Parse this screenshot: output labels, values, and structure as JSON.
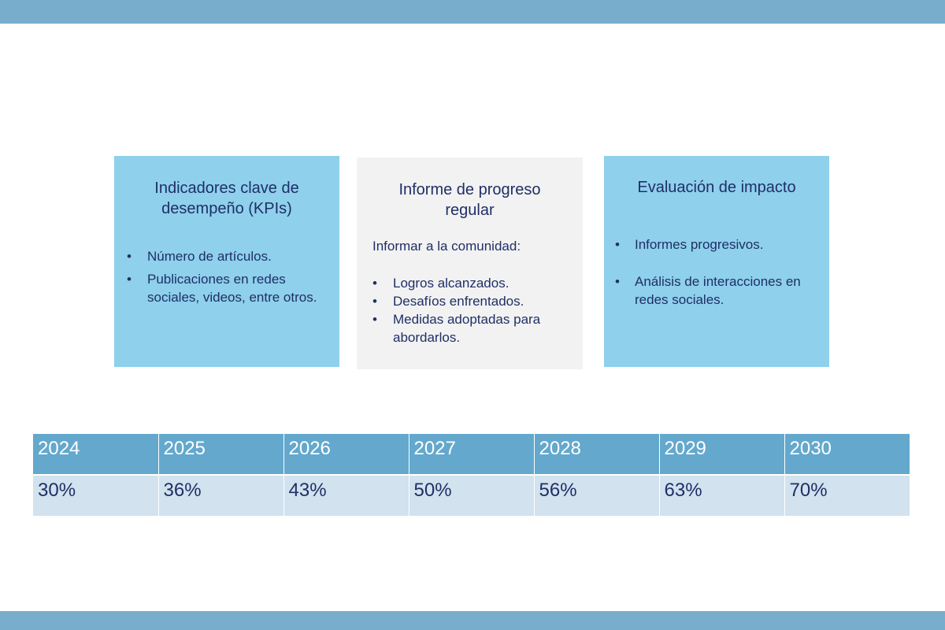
{
  "cards": {
    "kpi": {
      "title": "Indicadores clave de desempeño (KPIs)",
      "bullets": [
        "Número de artículos.",
        "Publicaciones en redes sociales, videos, entre otros."
      ]
    },
    "progress": {
      "title": "Informe de progreso regular",
      "intro": "Informar a la comunidad:",
      "bullets": [
        "Logros alcanzados.",
        "Desafíos enfrentados.",
        "Medidas adoptadas para abordarlos."
      ]
    },
    "impact": {
      "title": "Evaluación de impacto",
      "bullets": [
        "Informes progresivos.",
        "Análisis de interacciones en redes sociales."
      ]
    }
  },
  "table": {
    "years": [
      "2024",
      "2025",
      "2026",
      "2027",
      "2028",
      "2029",
      "2030"
    ],
    "values": [
      "30%",
      "36%",
      "43%",
      "50%",
      "56%",
      "63%",
      "70%"
    ]
  },
  "colors": {
    "band": "#78aecb",
    "card_blue": "#8fd0ec",
    "card_gray": "#f2f2f2",
    "table_header": "#64a8cd",
    "table_values": "#d2e2ee",
    "text_navy": "#1f2f66"
  }
}
